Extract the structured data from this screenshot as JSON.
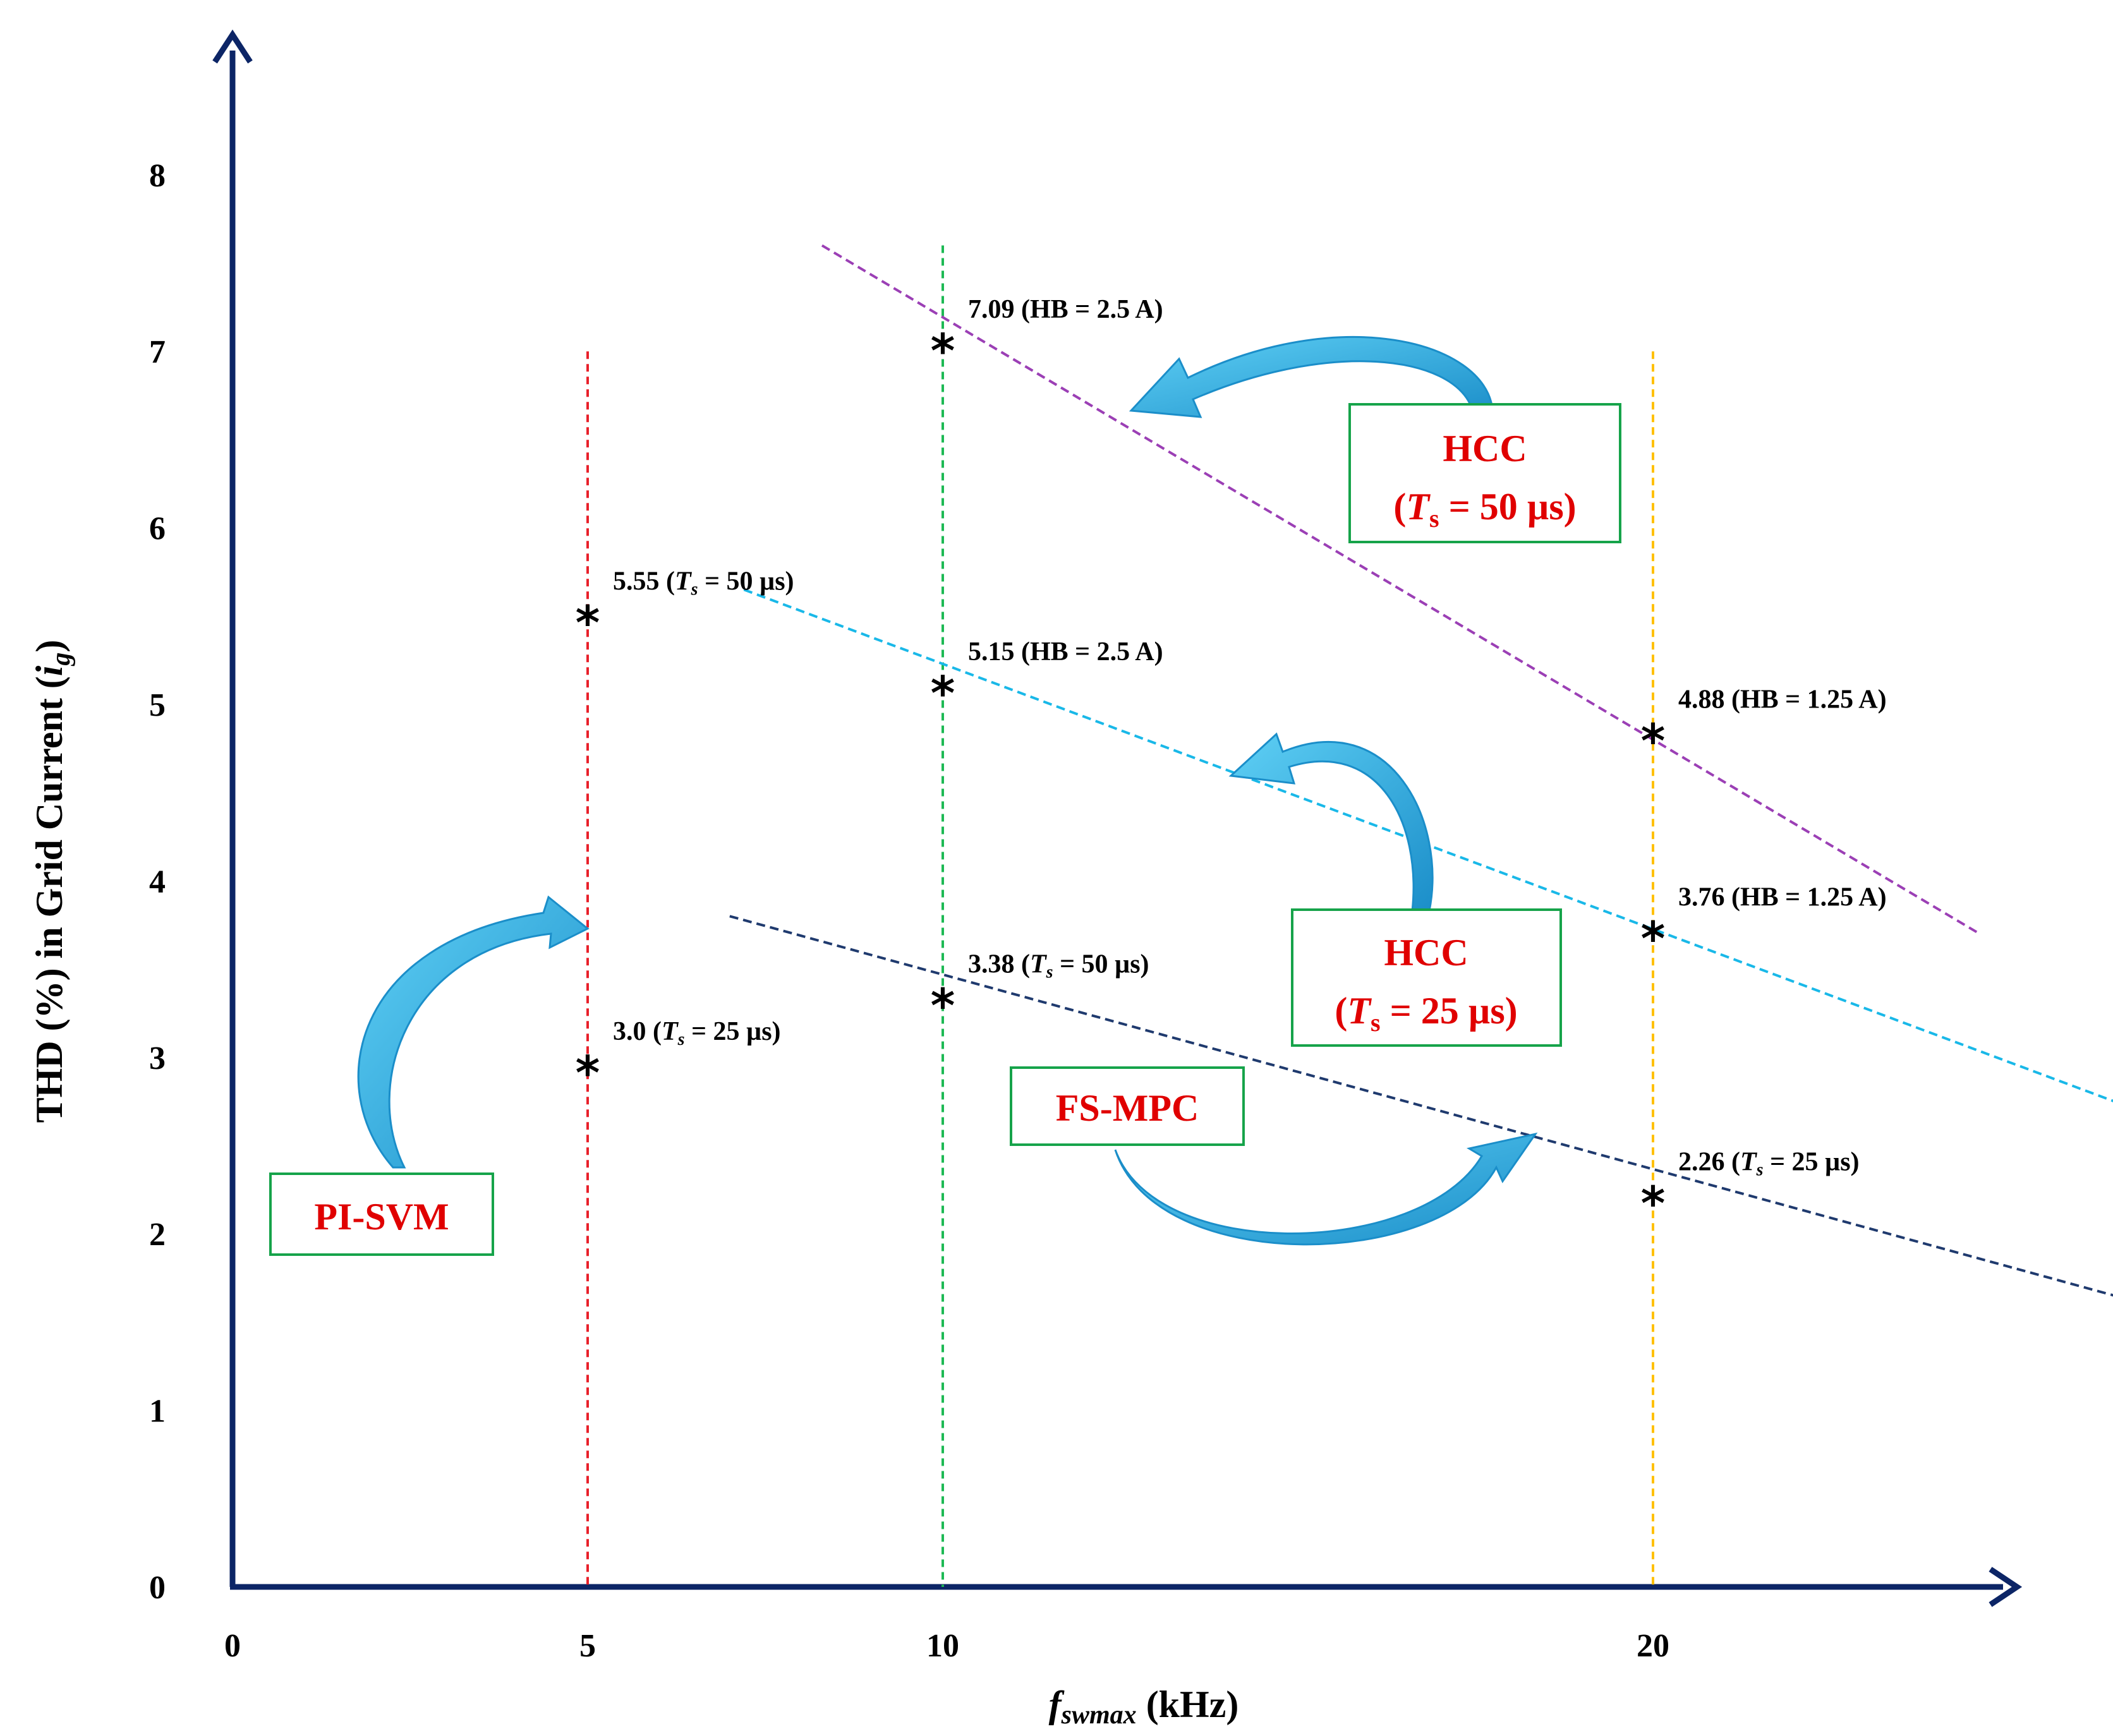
{
  "chart_data": {
    "type": "scatter",
    "xlabel_main": "f",
    "xlabel_sub": "swmax",
    "xlabel_unit": " (kHz)",
    "ylabel_main": "THD (%) in Grid Current (",
    "ylabel_var": "i",
    "ylabel_sub": "g",
    "ylabel_close": ")",
    "xticks": [
      "0",
      "5",
      "10",
      "20"
    ],
    "yticks": [
      "0",
      "1",
      "2",
      "3",
      "4",
      "5",
      "6",
      "7",
      "8"
    ],
    "xlim": [
      0,
      25
    ],
    "ylim": [
      0,
      8
    ],
    "grid": false,
    "points": [
      {
        "x": 5,
        "y": 5.55,
        "value": "5.55",
        "pre": " (",
        "ts": "T",
        "sub": "s",
        "post": " = 50 µs)"
      },
      {
        "x": 5,
        "y": 3.0,
        "value": "3.0",
        "pre": " (",
        "ts": "T",
        "sub": "s",
        "post": " = 25 µs)"
      },
      {
        "x": 10,
        "y": 7.09,
        "value": "7.09",
        "pre": "",
        "ts": "",
        "sub": "",
        "post": " (HB = 2.5 A)"
      },
      {
        "x": 10,
        "y": 5.15,
        "value": "5.15",
        "pre": "",
        "ts": "",
        "sub": "",
        "post": " (HB = 2.5 A)"
      },
      {
        "x": 10,
        "y": 3.38,
        "value": "3.38",
        "pre": " (",
        "ts": "T",
        "sub": "s",
        "post": " = 50 µs)"
      },
      {
        "x": 20,
        "y": 4.88,
        "value": "4.88",
        "pre": "",
        "ts": "",
        "sub": "",
        "post": " (HB = 1.25 A)"
      },
      {
        "x": 20,
        "y": 3.76,
        "value": "3.76",
        "pre": "",
        "ts": "",
        "sub": "",
        "post": " (HB = 1.25 A)"
      },
      {
        "x": 20,
        "y": 2.26,
        "value": "2.26",
        "pre": " (",
        "ts": "T",
        "sub": "s",
        "post": " = 25 µs)"
      }
    ],
    "vlines": [
      {
        "x": 5,
        "color": "#e8202a",
        "y_top": 7.0
      },
      {
        "x": 10,
        "color": "#1db954",
        "y_top": 7.6
      },
      {
        "x": 20,
        "color": "#ffc000",
        "y_top": 7.0
      }
    ],
    "trendlines": [
      {
        "name": "HCC (Ts = 50 µs)",
        "color": "#9b3fb5",
        "from": [
          8.3,
          7.6
        ],
        "to": [
          24.6,
          3.7
        ]
      },
      {
        "name": "HCC (Ts = 25 µs)",
        "color": "#19b8e8",
        "from": [
          7.2,
          5.65
        ],
        "to": [
          26.5,
          2.75
        ]
      },
      {
        "name": "FS-MPC",
        "color": "#1f3a6e",
        "from": [
          7.0,
          3.8
        ],
        "to": [
          26.5,
          1.65
        ]
      }
    ],
    "boxes": [
      {
        "id": "hcc50",
        "line1": "HCC",
        "line2_pre": "(",
        "ts": "T",
        "sub": "s",
        "line2_post": " = 50 µs)"
      },
      {
        "id": "hcc25",
        "line1": "HCC",
        "line2_pre": "(",
        "ts": "T",
        "sub": "s",
        "line2_post": " = 25 µs)"
      },
      {
        "id": "fsmpc",
        "line1": "FS-MPC"
      },
      {
        "id": "pisvm",
        "line1": "PI-SVM"
      }
    ],
    "colors": {
      "axis": "#0c2566",
      "arrow_fill": "#2aa9e0",
      "box_border": "#16a34a",
      "box_text": "#e00000"
    }
  }
}
